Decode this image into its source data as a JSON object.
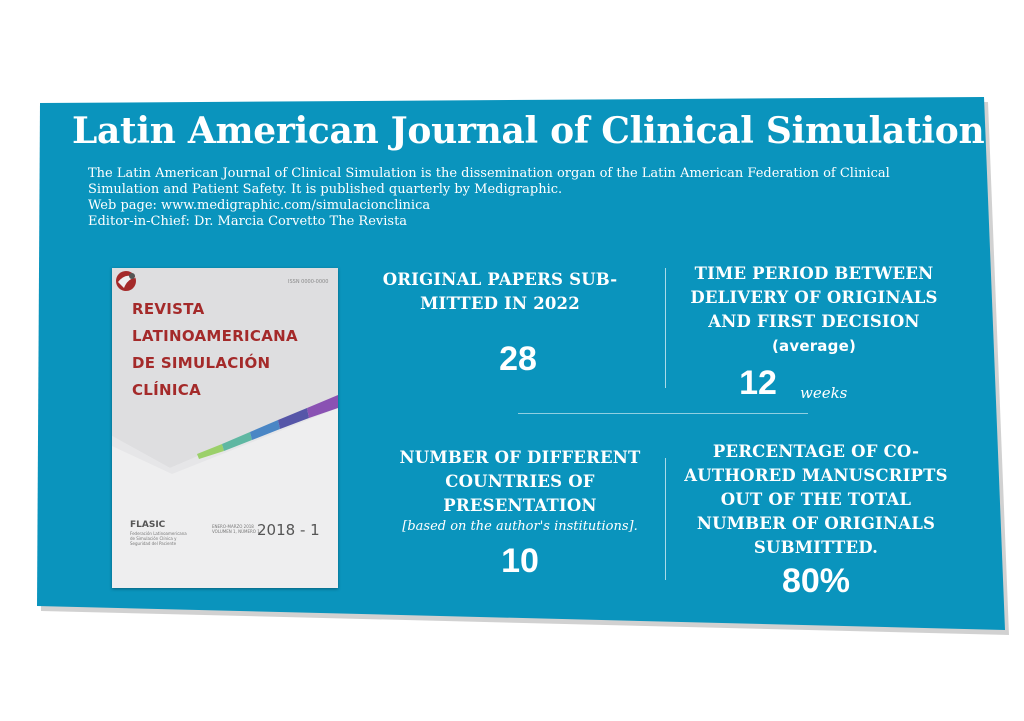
{
  "colors": {
    "card_background": "#0a94bd",
    "cover_title": "#a42a2a"
  },
  "header": {
    "title": "Latin American Journal of Clinical Simulation",
    "description_lines": [
      "The Latin American Journal of Clinical Simulation is the dissemination organ of the Latin American Federation of Clinical",
      "Simulation and Patient Safety. It is published quarterly by Medigraphic.",
      "Web page: www.medigraphic.com/simulacionclinica",
      "Editor-in-Chief: Dr. Marcia Corvetto The Revista"
    ]
  },
  "cover": {
    "issn": "ISSN 0000-0000",
    "title_lines": [
      "REVISTA",
      "LATINOAMERICANA",
      "DE SIMULACIÓN",
      "CLÍNICA"
    ],
    "org": "FLASIC",
    "org_full_lines": [
      "Federación Latinoamericana",
      "de Simulación Clínica y",
      "Seguridad del Paciente"
    ],
    "volume_lines": [
      "ENERO-MARZO 2018",
      "VOLUMEN 1, NÚMERO 1"
    ],
    "issue": "2018 - 1",
    "logo_icon": "flasic-logo-icon"
  },
  "stats": {
    "papers": {
      "heading_lines": [
        "ORIGINAL PAPERS SUB-",
        "MITTED IN 2022"
      ],
      "value": "28"
    },
    "time": {
      "heading_lines": [
        "TIME PERIOD BETWEEN",
        "DELIVERY OF ORIGINALS",
        "AND FIRST DECISION"
      ],
      "qualifier": "(average)",
      "value": "12",
      "unit": "weeks"
    },
    "countries": {
      "heading_lines": [
        "NUMBER OF DIFFERENT",
        "COUNTRIES OF",
        "PRESENTATION"
      ],
      "note": "[based on the author's institutions].",
      "value": "10"
    },
    "coauthored": {
      "heading_lines": [
        "PERCENTAGE OF CO-",
        "AUTHORED MANUSCRIPTS",
        "OUT OF THE TOTAL",
        "NUMBER OF ORIGINALS",
        "SUBMITTED."
      ],
      "value": "80%"
    }
  }
}
